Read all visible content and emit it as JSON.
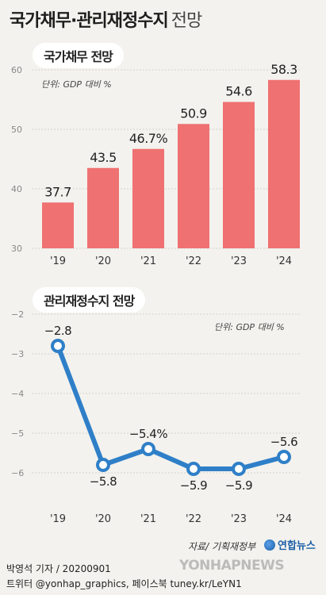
{
  "title": {
    "main": "국가채무·관리재정수지",
    "sub": "전망"
  },
  "chart_data": [
    {
      "type": "bar",
      "title": "국가채무 전망",
      "unit_label": "단위: GDP 대비 %",
      "categories": [
        "'19",
        "'20",
        "'21",
        "'22",
        "'23",
        "'24"
      ],
      "values": [
        37.7,
        43.5,
        46.7,
        50.9,
        54.6,
        58.3
      ],
      "value_labels": [
        "37.7",
        "43.5",
        "46.7%",
        "50.9",
        "54.6",
        "58.3"
      ],
      "ylim": [
        30,
        60
      ],
      "yticks": [
        "30",
        "40",
        "50",
        "60"
      ],
      "bar_color": "#ef7171",
      "grid": true
    },
    {
      "type": "line",
      "title": "관리재정수지 전망",
      "unit_label": "단위: GDP 대비 %",
      "categories": [
        "'19",
        "'20",
        "'21",
        "'22",
        "'23",
        "'24"
      ],
      "values": [
        -2.8,
        -5.8,
        -5.4,
        -5.9,
        -5.9,
        -5.6
      ],
      "value_labels": [
        "−2.8",
        "−5.8",
        "−5.4%",
        "−5.9",
        "−5.9",
        "−5.6"
      ],
      "ylim": [
        -6,
        -2
      ],
      "yticks": [
        "−2",
        "−3",
        "−4",
        "−5",
        "−6"
      ],
      "line_color": "#2f7fc8",
      "grid": true
    }
  ],
  "footer": {
    "source": "자료/ 기획재정부",
    "logo": "연합뉴스",
    "credit": "박영석 기자 /  20200901",
    "social": "트위터 @yonhap_graphics, 페이스북 tuney.kr/LeYN1",
    "watermark": "YONHAPNEWS"
  }
}
